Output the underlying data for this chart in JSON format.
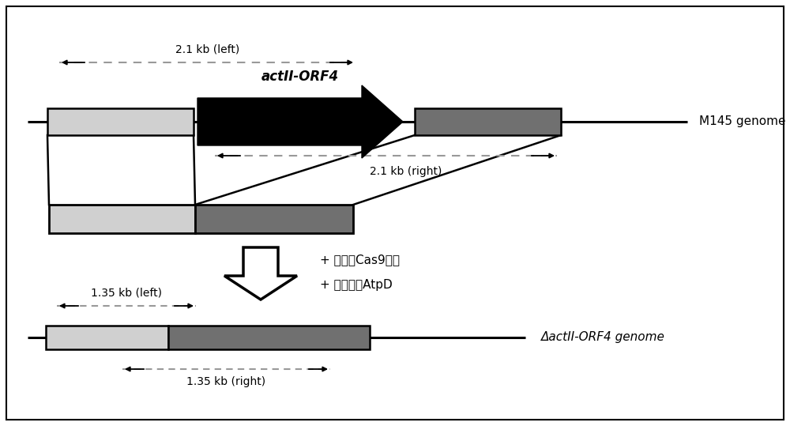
{
  "bg_color": "#ffffff",
  "border_color": "#000000",
  "top_dashed_label": "2.1 kb (left)",
  "mid_dashed_label": "2.1 kb (right)",
  "bottom_left_label": "1.35 kb (left)",
  "bottom_right_label": "1.35 kb (right)",
  "genome_label_top": "M145 genome",
  "genome_label_bottom": "ΔactII-ORF4 genome",
  "gene_label": "actII-ORF4",
  "arrow_text_line1": "+ 可控的Cas9活性",
  "arrow_text_line2": "+ 过表达的AtpD",
  "light_gray": "#d0d0d0",
  "dark_gray": "#707070",
  "black": "#000000",
  "white": "#ffffff",
  "dash_gray": "#999999"
}
